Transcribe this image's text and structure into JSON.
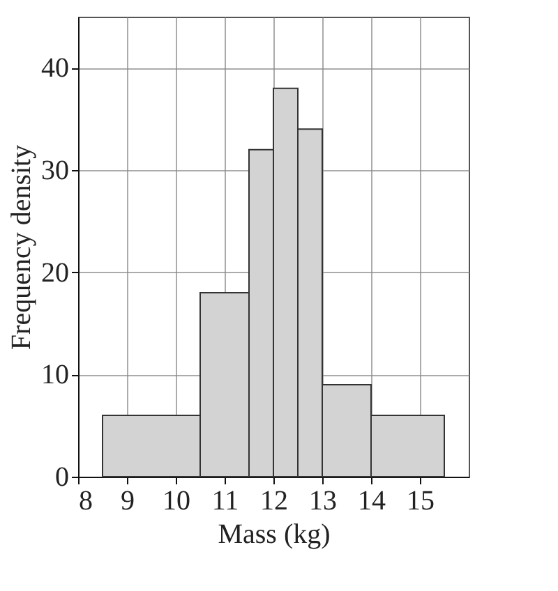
{
  "chart_data": {
    "type": "histogram",
    "xlabel": "Mass (kg)",
    "ylabel": "Frequency density",
    "bins": [
      8.5,
      10.5,
      11.5,
      12,
      12.5,
      13,
      14,
      15.5
    ],
    "values": [
      6,
      18,
      32,
      38,
      34,
      9,
      6
    ],
    "color": "#d3d3d3",
    "xlim": [
      8,
      16
    ],
    "xticks": [
      8,
      9,
      10,
      11,
      12,
      13,
      14,
      15
    ],
    "ylim": [
      0,
      45
    ],
    "yticks": [
      0,
      10,
      20,
      30,
      40
    ],
    "grid": true
  }
}
